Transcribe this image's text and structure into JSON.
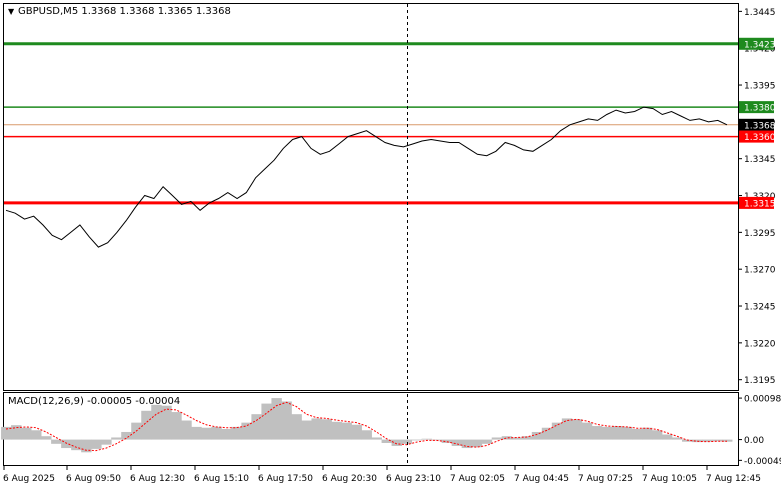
{
  "header": {
    "symbol_label": "GBPUSD,M5  1.3368 1.3368 1.3365 1.3368"
  },
  "macd_header": {
    "label": "MACD(12,26,9) -0.00005 -0.00004"
  },
  "colors": {
    "price_line": "#000000",
    "green_level": "#1e8a1e",
    "red_level": "#ff0000",
    "current_price_line": "#d99a6c",
    "histogram": "#c0c0c0",
    "signal": "#ff0000",
    "grid": "#e8e8e8",
    "axis": "#000000"
  },
  "chart_data": [
    {
      "type": "line",
      "title": "GBPUSD,M5",
      "ohlc": {
        "open": 1.3368,
        "high": 1.3368,
        "low": 1.3365,
        "close": 1.3368
      },
      "y_ticks": [
        "1.3445",
        "1.3420",
        "1.3395",
        "1.3370",
        "1.3345",
        "1.3320",
        "1.3295",
        "1.3270",
        "1.3245",
        "1.3220",
        "1.3195"
      ],
      "ylim": [
        1.3188,
        1.345
      ],
      "x_ticks": [
        "6 Aug 2025",
        "6 Aug 09:50",
        "6 Aug 12:30",
        "6 Aug 15:10",
        "6 Aug 17:50",
        "6 Aug 20:30",
        "6 Aug 23:10",
        "7 Aug 02:05",
        "7 Aug 04:45",
        "7 Aug 07:25",
        "7 Aug 10:05",
        "7 Aug 12:45"
      ],
      "levels": [
        {
          "value": 1.3423,
          "label": "1.3423",
          "color": "#1e8a1e"
        },
        {
          "value": 1.338,
          "label": "1.3380",
          "color": "#1e8a1e"
        },
        {
          "value": 1.3368,
          "label": "1.3368",
          "color": "#000000"
        },
        {
          "value": 1.336,
          "label": "1.3360",
          "color": "#ff0000"
        },
        {
          "value": 1.3315,
          "label": "1.3315",
          "color": "#ff0000"
        }
      ],
      "price_series": [
        1.331,
        1.3308,
        1.3304,
        1.3306,
        1.33,
        1.3293,
        1.329,
        1.3295,
        1.33,
        1.3292,
        1.3285,
        1.3288,
        1.3295,
        1.3303,
        1.3312,
        1.332,
        1.3318,
        1.3326,
        1.332,
        1.3314,
        1.3316,
        1.331,
        1.3315,
        1.3318,
        1.3322,
        1.3318,
        1.3322,
        1.3332,
        1.3338,
        1.3344,
        1.3352,
        1.3358,
        1.336,
        1.3352,
        1.3348,
        1.335,
        1.3355,
        1.336,
        1.3362,
        1.3364,
        1.336,
        1.3356,
        1.3354,
        1.3353,
        1.3355,
        1.3357,
        1.3358,
        1.3357,
        1.3356,
        1.3356,
        1.3352,
        1.3348,
        1.3347,
        1.335,
        1.3356,
        1.3354,
        1.3351,
        1.335,
        1.3354,
        1.3358,
        1.3364,
        1.3368,
        1.337,
        1.3372,
        1.3371,
        1.3375,
        1.3378,
        1.3376,
        1.3377,
        1.338,
        1.3379,
        1.3375,
        1.3377,
        1.3374,
        1.3371,
        1.3372,
        1.337,
        1.3371,
        1.3368
      ],
      "x_range": [
        "6 Aug 2025",
        "7 Aug 12:45"
      ]
    },
    {
      "type": "bar",
      "title": "MACD(12,26,9)",
      "macd_value": -5e-05,
      "signal_value": -4e-05,
      "y_ticks": [
        "0.00098",
        "0.00",
        "-0.00049"
      ],
      "ylim": [
        -0.0006,
        0.0011
      ],
      "histogram": [
        0.0003,
        0.00034,
        0.00028,
        0.00022,
        8e-05,
        -0.0001,
        -0.0002,
        -0.00025,
        -0.0003,
        -0.00022,
        -0.00012,
        5e-05,
        0.00018,
        0.0004,
        0.00068,
        0.00082,
        0.0008,
        0.00065,
        0.00045,
        0.0003,
        0.00028,
        0.0003,
        0.00025,
        0.0003,
        0.0004,
        0.0006,
        0.00085,
        0.00098,
        0.0009,
        0.0006,
        0.00045,
        0.0005,
        0.00048,
        0.00042,
        0.0004,
        0.00035,
        0.00022,
        5e-05,
        -8e-05,
        -0.00015,
        -0.0001,
        -2e-05,
        2e-05,
        -2e-05,
        -8e-05,
        -0.00015,
        -0.0002,
        -0.00018,
        -0.0001,
        5e-05,
        8e-05,
        5e-05,
        8e-05,
        0.00018,
        0.00028,
        0.0004,
        0.0005,
        0.00048,
        0.0004,
        0.00032,
        0.0003,
        0.00032,
        0.0003,
        0.00025,
        0.00028,
        0.00022,
        0.00012,
        5e-05,
        -5e-05,
        -6e-05,
        -5e-05,
        -4e-05,
        -5e-05
      ],
      "signal_line": [
        0.00025,
        0.00028,
        0.0003,
        0.00028,
        0.00018,
        5e-05,
        -8e-05,
        -0.00018,
        -0.00025,
        -0.00026,
        -0.0002,
        -0.0001,
        3e-05,
        0.0002,
        0.0004,
        0.0006,
        0.00072,
        0.0007,
        0.00058,
        0.00045,
        0.00035,
        0.0003,
        0.00028,
        0.00028,
        0.00032,
        0.00045,
        0.00062,
        0.0008,
        0.00088,
        0.00078,
        0.0006,
        0.00052,
        0.0005,
        0.00046,
        0.00043,
        0.0004,
        0.00032,
        0.00018,
        2e-05,
        -0.0001,
        -0.00012,
        -6e-05,
        -2e-05,
        -2e-05,
        -5e-05,
        -0.0001,
        -0.00016,
        -0.00018,
        -0.00014,
        -4e-05,
        4e-05,
        5e-05,
        6e-05,
        0.00012,
        0.00022,
        0.00034,
        0.00045,
        0.00048,
        0.00044,
        0.00036,
        0.00032,
        0.00031,
        0.0003,
        0.00027,
        0.00027,
        0.00024,
        0.00016,
        8e-05,
        -1e-05,
        -4e-05,
        -5e-05,
        -4e-05,
        -4e-05
      ]
    }
  ]
}
